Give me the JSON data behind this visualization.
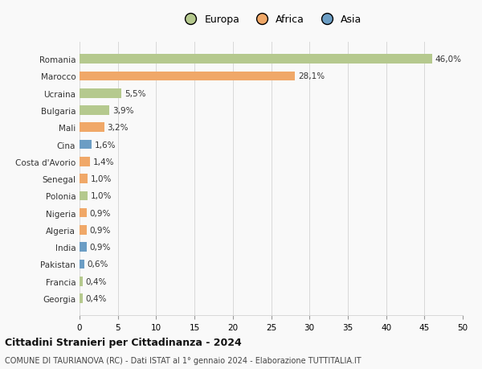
{
  "categories": [
    "Romania",
    "Marocco",
    "Ucraina",
    "Bulgaria",
    "Mali",
    "Cina",
    "Costa d'Avorio",
    "Senegal",
    "Polonia",
    "Nigeria",
    "Algeria",
    "India",
    "Pakistan",
    "Francia",
    "Georgia"
  ],
  "values": [
    46.0,
    28.1,
    5.5,
    3.9,
    3.2,
    1.6,
    1.4,
    1.0,
    1.0,
    0.9,
    0.9,
    0.9,
    0.6,
    0.4,
    0.4
  ],
  "labels": [
    "46,0%",
    "28,1%",
    "5,5%",
    "3,9%",
    "3,2%",
    "1,6%",
    "1,4%",
    "1,0%",
    "1,0%",
    "0,9%",
    "0,9%",
    "0,9%",
    "0,6%",
    "0,4%",
    "0,4%"
  ],
  "continents": [
    "Europa",
    "Africa",
    "Europa",
    "Europa",
    "Africa",
    "Asia",
    "Africa",
    "Africa",
    "Europa",
    "Africa",
    "Africa",
    "Asia",
    "Asia",
    "Europa",
    "Europa"
  ],
  "colors": {
    "Europa": "#b5c98e",
    "Africa": "#f0a868",
    "Asia": "#6b9dc4"
  },
  "xlim": [
    0,
    50
  ],
  "xticks": [
    0,
    5,
    10,
    15,
    20,
    25,
    30,
    35,
    40,
    45,
    50
  ],
  "title": "Cittadini Stranieri per Cittadinanza - 2024",
  "subtitle": "COMUNE DI TAURIANOVA (RC) - Dati ISTAT al 1° gennaio 2024 - Elaborazione TUTTITALIA.IT",
  "bg_color": "#f9f9f9",
  "grid_color": "#d8d8d8",
  "bar_height": 0.55
}
